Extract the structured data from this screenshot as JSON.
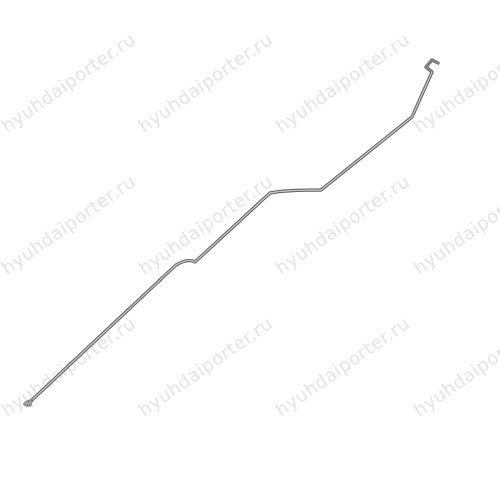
{
  "image": {
    "subject": "metal rod",
    "background_color": "#ffffff"
  },
  "watermark": {
    "text": "hyuhdaiporter.ru",
    "color": "#cfcfcf"
  },
  "part": {
    "color_main": "#8a8a8a",
    "color_shadow": "#4a4a4a",
    "color_highlight": "#e6e6e6"
  }
}
